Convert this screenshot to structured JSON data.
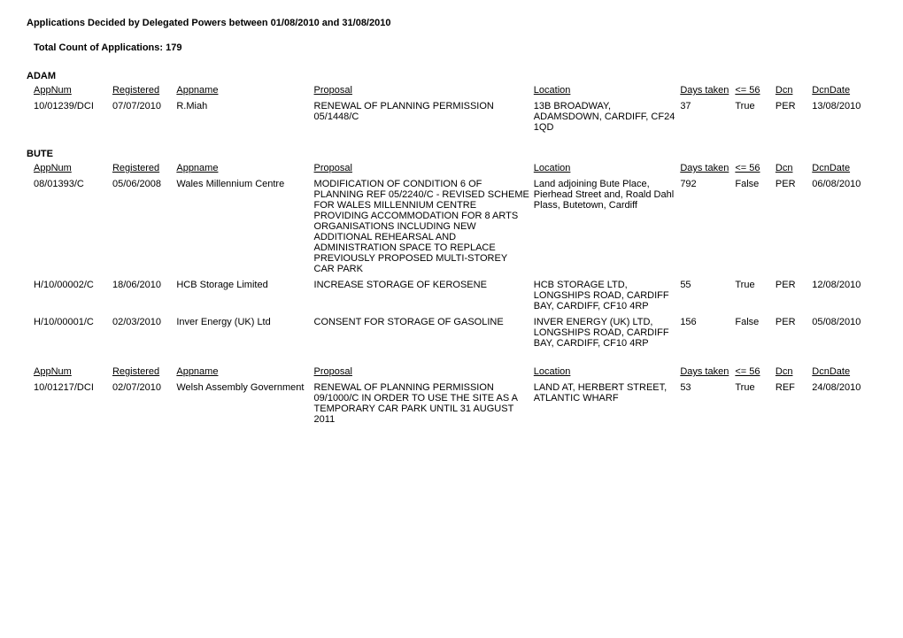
{
  "report": {
    "title": "Applications Decided by Delegated Powers between 01/08/2010 and 31/08/2010",
    "count_label": "Total Count of Applications: 179"
  },
  "columns": {
    "appnum": "AppNum",
    "registered": "Registered",
    "appname": "Appname",
    "proposal": "Proposal",
    "location": "Location",
    "days_taken": "Days taken",
    "le56": "<= 56",
    "dcn": "Dcn",
    "dcndate": "DcnDate"
  },
  "wards": {
    "adam": "ADAM",
    "bute": "BUTE"
  },
  "adam_rows": [
    {
      "appnum": "10/01239/DCI",
      "registered": "07/07/2010",
      "appname": "R.Miah",
      "proposal": "RENEWAL OF PLANNING PERMISSION 05/1448/C",
      "location": "13B BROADWAY, ADAMSDOWN, CARDIFF, CF24 1QD",
      "days": "37",
      "le56": "True",
      "dcn": "PER",
      "dcndate": "13/08/2010"
    }
  ],
  "bute_rows": [
    {
      "appnum": "08/01393/C",
      "registered": "05/06/2008",
      "appname": "Wales Millennium Centre",
      "proposal": "MODIFICATION OF CONDITION 6 OF PLANNING REF 05/2240/C - REVISED SCHEME FOR WALES MILLENNIUM CENTRE PROVIDING ACCOMMODATION FOR 8 ARTS ORGANISATIONS INCLUDING NEW ADDITIONAL REHEARSAL AND ADMINISTRATION SPACE TO REPLACE PREVIOUSLY PROPOSED MULTI-STOREY CAR PARK",
      "location": "Land adjoining Bute Place, Pierhead Street and, Roald Dahl Plass, Butetown, Cardiff",
      "days": "792",
      "le56": "False",
      "dcn": "PER",
      "dcndate": "06/08/2010"
    },
    {
      "appnum": "H/10/00002/C",
      "registered": "18/06/2010",
      "appname": "HCB Storage Limited",
      "proposal": "INCREASE STORAGE OF KEROSENE",
      "location": "HCB STORAGE LTD, LONGSHIPS ROAD, CARDIFF BAY, CARDIFF, CF10 4RP",
      "days": "55",
      "le56": "True",
      "dcn": "PER",
      "dcndate": "12/08/2010"
    },
    {
      "appnum": "H/10/00001/C",
      "registered": "02/03/2010",
      "appname": "Inver Energy (UK) Ltd",
      "proposal": "CONSENT FOR STORAGE OF GASOLINE",
      "location": "INVER ENERGY (UK) LTD, LONGSHIPS ROAD, CARDIFF BAY, CARDIFF, CF10 4RP",
      "days": "156",
      "le56": "False",
      "dcn": "PER",
      "dcndate": "05/08/2010"
    }
  ],
  "bute_rows2": [
    {
      "appnum": "10/01217/DCI",
      "registered": "02/07/2010",
      "appname": "Welsh Assembly Government",
      "proposal": "RENEWAL OF PLANNING PERMISSION 09/1000/C          IN ORDER TO USE THE SITE AS A TEMPORARY CAR PARK UNTIL 31 AUGUST 2011",
      "location": "LAND AT, HERBERT STREET, ATLANTIC WHARF",
      "days": "53",
      "le56": "True",
      "dcn": "REF",
      "dcndate": "24/08/2010"
    }
  ]
}
